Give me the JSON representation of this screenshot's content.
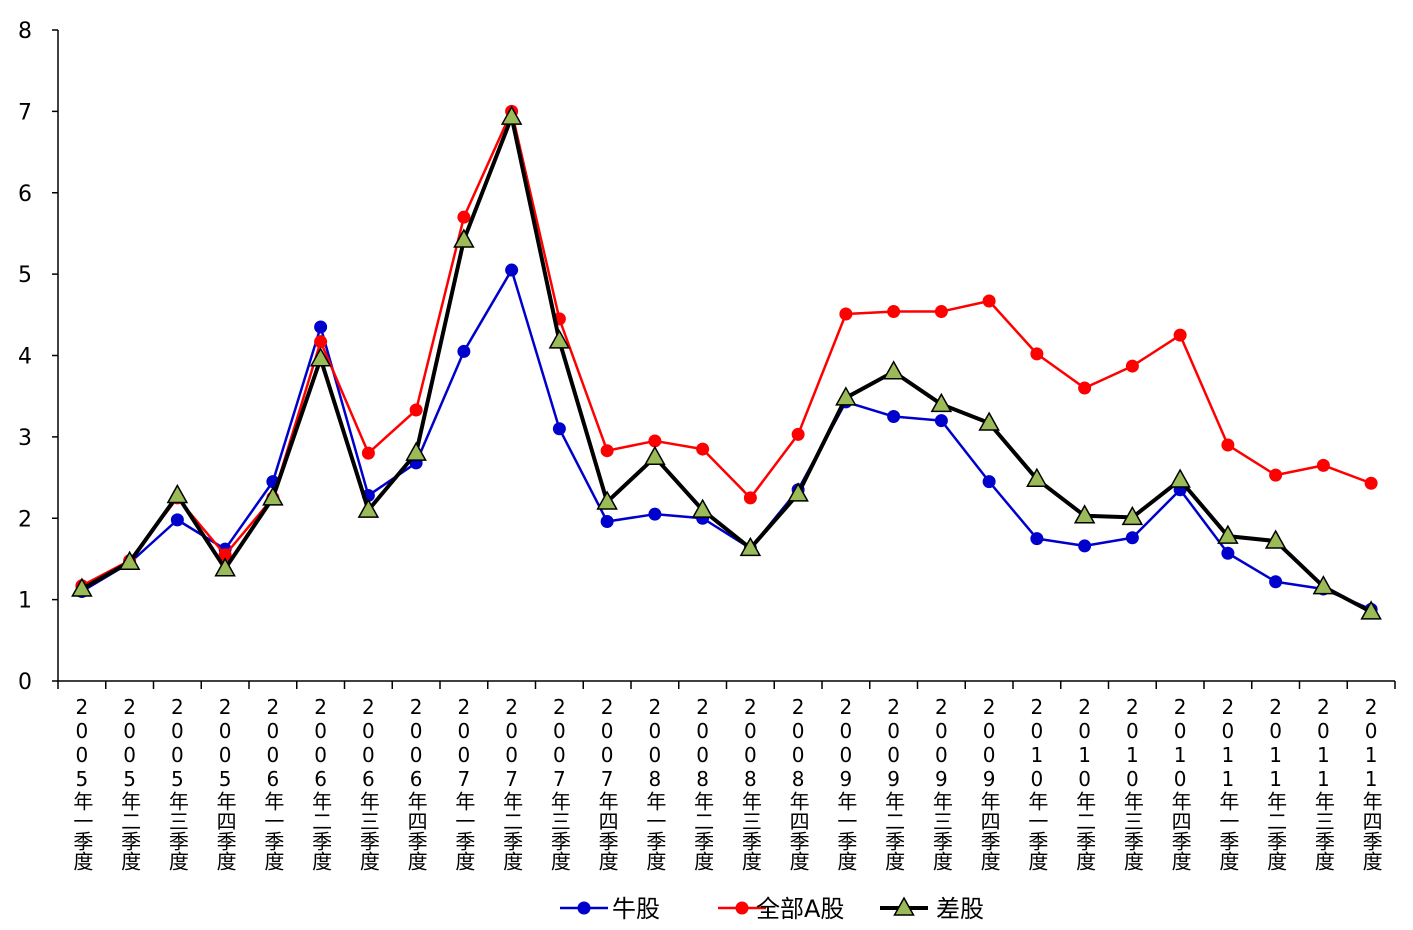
{
  "chart_data": {
    "type": "line",
    "title": "",
    "xlabel": "",
    "ylabel": "",
    "ylim": [
      0,
      8
    ],
    "yticks": [
      0,
      1,
      2,
      3,
      4,
      5,
      6,
      7,
      8
    ],
    "grid": false,
    "legend_position": "bottom-center",
    "categories": [
      "2005年一季度",
      "2005年二季度",
      "2005年三季度",
      "2005年四季度",
      "2006年一季度",
      "2006年二季度",
      "2006年三季度",
      "2006年四季度",
      "2007年一季度",
      "2007年二季度",
      "2007年三季度",
      "2007年四季度",
      "2008年一季度",
      "2008年二季度",
      "2008年三季度",
      "2008年四季度",
      "2009年一季度",
      "2009年二季度",
      "2009年三季度",
      "2009年四季度",
      "2010年一季度",
      "2010年二季度",
      "2010年三季度",
      "2010年四季度",
      "2011年一季度",
      "2011年二季度",
      "2011年三季度",
      "2011年四季度"
    ],
    "series": [
      {
        "name": "牛股",
        "color": "#0000cc",
        "marker": "circle",
        "values": [
          1.1,
          1.45,
          1.98,
          1.62,
          2.45,
          4.35,
          2.28,
          2.68,
          4.05,
          5.05,
          3.1,
          1.96,
          2.05,
          2.0,
          1.63,
          2.35,
          3.43,
          3.25,
          3.2,
          2.45,
          1.75,
          1.66,
          1.76,
          2.35,
          1.57,
          1.22,
          1.13,
          0.88
        ]
      },
      {
        "name": "全部A股",
        "color": "#ff0000",
        "marker": "circle",
        "values": [
          1.17,
          1.48,
          2.25,
          1.55,
          2.25,
          4.17,
          2.8,
          3.33,
          5.7,
          7.0,
          4.45,
          2.83,
          2.95,
          2.85,
          2.25,
          3.03,
          4.51,
          4.54,
          4.54,
          4.67,
          4.02,
          3.6,
          3.87,
          4.25,
          2.9,
          2.53,
          2.65,
          2.43
        ]
      },
      {
        "name": "差股",
        "color": "#000000",
        "marker": "triangle",
        "marker_fill": "#9bbb59",
        "values": [
          1.13,
          1.46,
          2.28,
          1.38,
          2.25,
          3.96,
          2.1,
          2.8,
          5.42,
          6.93,
          4.18,
          2.2,
          2.75,
          2.1,
          1.63,
          2.3,
          3.48,
          3.8,
          3.4,
          3.17,
          2.48,
          2.03,
          2.01,
          2.47,
          1.78,
          1.72,
          1.16,
          0.85
        ]
      }
    ]
  }
}
